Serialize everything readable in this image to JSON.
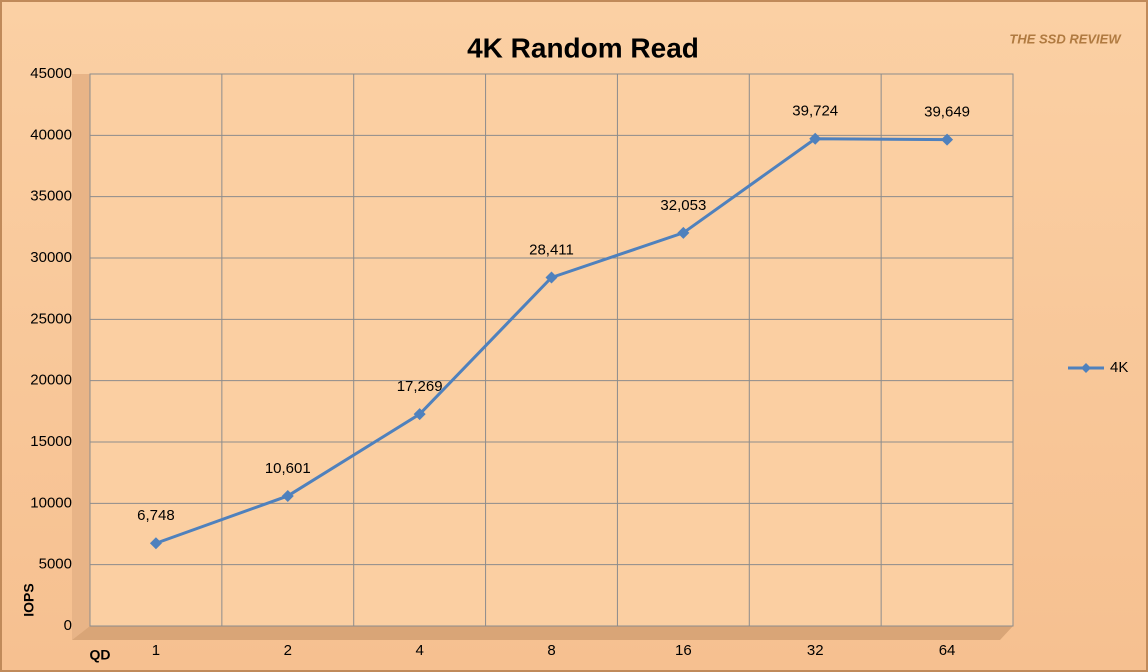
{
  "chart_data": {
    "type": "line",
    "title": "4K Random Read",
    "logo": "THE SSD REVIEW",
    "x_label": "QD",
    "y_label": "IOPS",
    "categories": [
      "1",
      "2",
      "4",
      "8",
      "16",
      "32",
      "64"
    ],
    "series": [
      {
        "name": "4K",
        "color": "#4f81bd",
        "values": [
          6748,
          10601,
          17269,
          28411,
          32053,
          39724,
          39649
        ],
        "value_labels": [
          "6,748",
          "10,601",
          "17,269",
          "28,411",
          "32,053",
          "39,724",
          "39,649"
        ]
      }
    ],
    "ylim": [
      0,
      45000
    ],
    "yticks": [
      0,
      5000,
      10000,
      15000,
      20000,
      25000,
      30000,
      35000,
      40000,
      45000
    ],
    "grid": true,
    "legend": "right"
  }
}
